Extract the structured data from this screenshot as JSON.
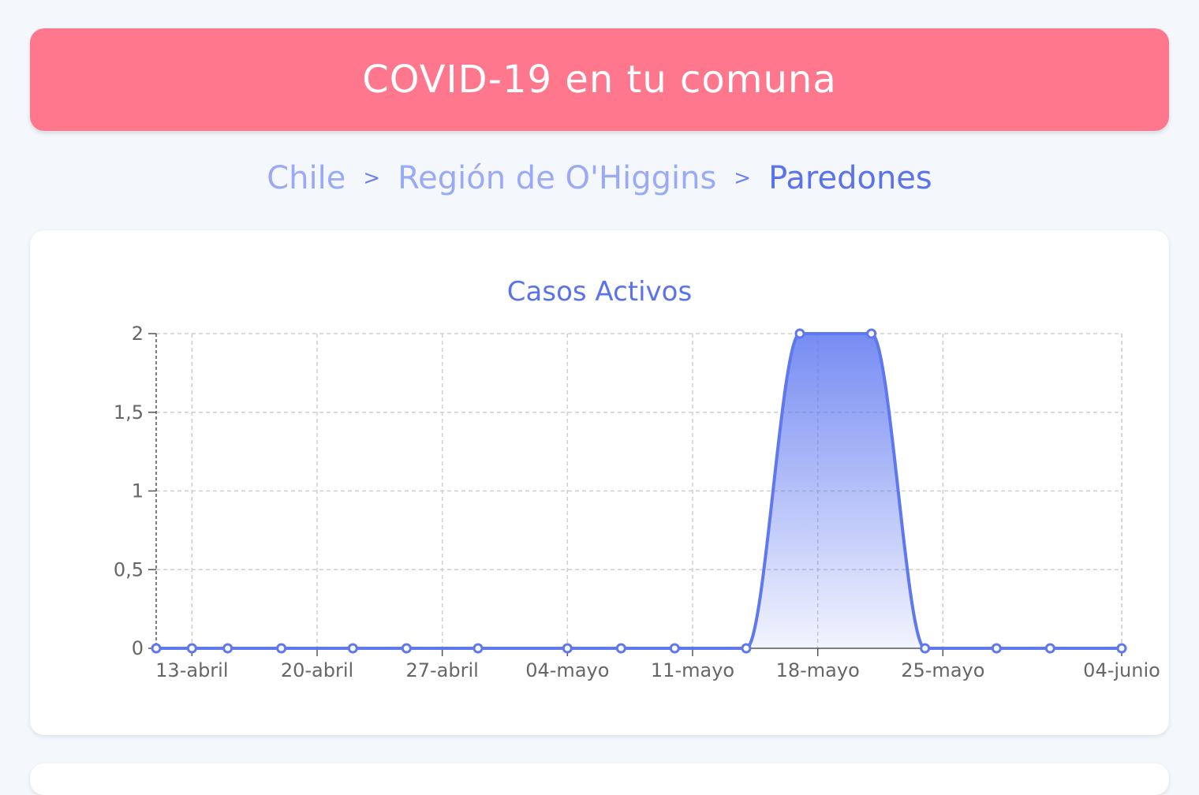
{
  "header": {
    "title": "COVID-19 en tu comuna"
  },
  "breadcrumb": {
    "country": "Chile",
    "region": "Región de O'Higgins",
    "commune": "Paredones",
    "separator": ">"
  },
  "colors": {
    "header_bg": "#ff778c",
    "line": "#5f78f0",
    "link": "#9aaaf6",
    "current": "#5b72ee"
  },
  "chart_data": {
    "type": "area",
    "title": "Casos Activos",
    "xlabel": "",
    "ylabel": "",
    "x_tick_labels": [
      "13-abril",
      "20-abril",
      "27-abril",
      "04-mayo",
      "11-mayo",
      "18-mayo",
      "25-mayo",
      "04-junio"
    ],
    "y_tick_labels": [
      "0",
      "0,5",
      "1",
      "1,5",
      "2"
    ],
    "ylim": [
      0,
      2
    ],
    "grid": true,
    "series": [
      {
        "x": [
          "11-abril",
          "13-abril",
          "15-abril",
          "18-abril",
          "22-abril",
          "25-abril",
          "29-abril",
          "04-mayo",
          "07-mayo",
          "10-mayo",
          "14-mayo",
          "17-mayo",
          "21-mayo",
          "24-mayo",
          "28-mayo",
          "31-mayo",
          "04-junio"
        ],
        "values": [
          0,
          0,
          0,
          0,
          0,
          0,
          0,
          0,
          0,
          0,
          0,
          2,
          2,
          0,
          0,
          0,
          0
        ]
      }
    ]
  }
}
